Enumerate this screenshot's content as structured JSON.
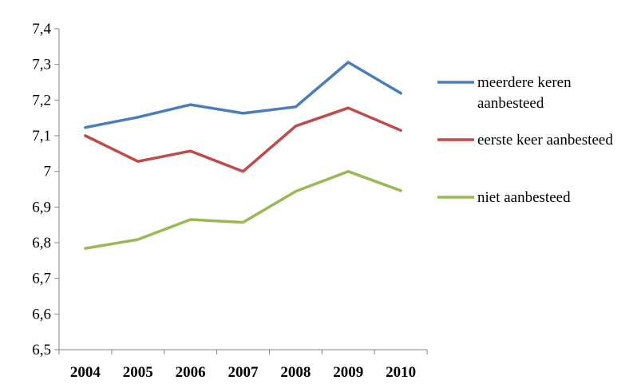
{
  "chart_data": {
    "type": "line",
    "categories": [
      "2004",
      "2005",
      "2006",
      "2007",
      "2008",
      "2009",
      "2010"
    ],
    "ylim": [
      6.5,
      7.4
    ],
    "yticks": [
      "6,5",
      "6,6",
      "6,7",
      "6,8",
      "6,9",
      "7",
      "7,1",
      "7,2",
      "7,3",
      "7,4"
    ],
    "ytick_values": [
      6.5,
      6.6,
      6.7,
      6.8,
      6.9,
      7.0,
      7.1,
      7.2,
      7.3,
      7.4
    ],
    "grid": false,
    "legend_position": "right",
    "series": [
      {
        "name": "meerdere keren aanbesteed",
        "legend_lines": [
          "meerdere keren",
          "aanbesteed"
        ],
        "color": "#4a7ebb",
        "values": [
          7.123,
          7.152,
          7.187,
          7.163,
          7.181,
          7.306,
          7.219
        ]
      },
      {
        "name": "eerste keer aanbesteed",
        "legend_lines": [
          "eerste keer aanbesteed"
        ],
        "color": "#be4b48",
        "values": [
          7.1,
          7.028,
          7.057,
          7.0,
          7.127,
          7.178,
          7.115
        ]
      },
      {
        "name": "niet aanbesteed",
        "legend_lines": [
          "niet aanbesteed"
        ],
        "color": "#98b954",
        "values": [
          6.784,
          6.809,
          6.865,
          6.857,
          6.944,
          7.0,
          6.946
        ]
      }
    ]
  }
}
